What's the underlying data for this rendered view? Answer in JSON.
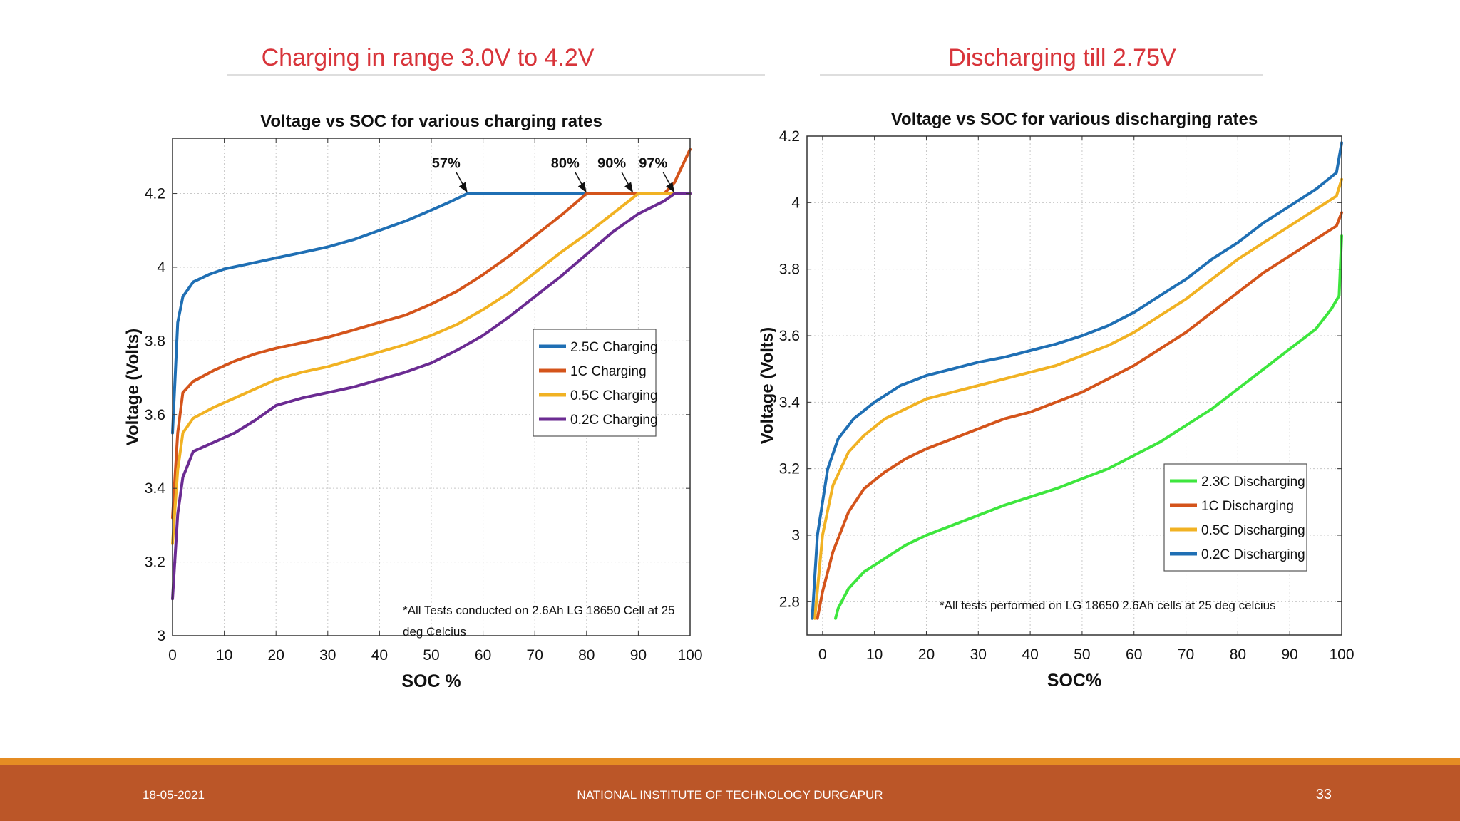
{
  "slide": {
    "left_heading": "Charging in range 3.0V to 4.2V",
    "right_heading": "Discharging till 2.75V",
    "footer_date": "18-05-2021",
    "footer_org": "NATIONAL INSTITUTE OF TECHNOLOGY DURGAPUR",
    "footer_page": "33"
  },
  "chart_data": [
    {
      "type": "line",
      "title": "Voltage vs SOC for various charging rates",
      "xlabel": "SOC %",
      "ylabel": "Voltage (Volts)",
      "xlim": [
        0,
        100
      ],
      "ylim": [
        3.0,
        4.35
      ],
      "xticks": [
        0,
        10,
        20,
        30,
        40,
        50,
        60,
        70,
        80,
        90,
        100
      ],
      "yticks": [
        3.0,
        3.2,
        3.4,
        3.6,
        3.8,
        4.0,
        4.2
      ],
      "ytick_labels": [
        "3",
        "3.2",
        "3.4",
        "3.6",
        "3.8",
        "4",
        "4.2"
      ],
      "grid": true,
      "legend_position": "center-right",
      "note_lines": [
        "*All Tests conducted on 2.6Ah LG 18650 Cell at 25",
        "deg Celcius"
      ],
      "series": [
        {
          "name": "2.5C Charging",
          "color": "#1f6fb4",
          "points": [
            [
              0,
              3.55
            ],
            [
              1,
              3.85
            ],
            [
              2,
              3.92
            ],
            [
              4,
              3.96
            ],
            [
              7,
              3.98
            ],
            [
              10,
              3.995
            ],
            [
              15,
              4.01
            ],
            [
              20,
              4.025
            ],
            [
              25,
              4.04
            ],
            [
              30,
              4.055
            ],
            [
              35,
              4.075
            ],
            [
              40,
              4.1
            ],
            [
              45,
              4.125
            ],
            [
              50,
              4.155
            ],
            [
              54,
              4.18
            ],
            [
              57,
              4.2
            ],
            [
              100,
              4.2
            ]
          ]
        },
        {
          "name": "1C Charging",
          "color": "#d4541b",
          "points": [
            [
              0,
              3.32
            ],
            [
              1,
              3.55
            ],
            [
              2,
              3.66
            ],
            [
              4,
              3.69
            ],
            [
              8,
              3.72
            ],
            [
              12,
              3.745
            ],
            [
              16,
              3.765
            ],
            [
              20,
              3.78
            ],
            [
              25,
              3.795
            ],
            [
              30,
              3.81
            ],
            [
              35,
              3.83
            ],
            [
              40,
              3.85
            ],
            [
              45,
              3.87
            ],
            [
              50,
              3.9
            ],
            [
              55,
              3.935
            ],
            [
              60,
              3.98
            ],
            [
              65,
              4.03
            ],
            [
              70,
              4.085
            ],
            [
              75,
              4.14
            ],
            [
              80,
              4.2
            ],
            [
              95,
              4.2
            ],
            [
              97,
              4.23
            ],
            [
              100,
              4.32
            ]
          ]
        },
        {
          "name": "0.5C Charging",
          "color": "#f1b223",
          "points": [
            [
              0,
              3.25
            ],
            [
              1,
              3.45
            ],
            [
              2,
              3.55
            ],
            [
              4,
              3.59
            ],
            [
              8,
              3.62
            ],
            [
              12,
              3.645
            ],
            [
              16,
              3.67
            ],
            [
              20,
              3.695
            ],
            [
              25,
              3.715
            ],
            [
              30,
              3.73
            ],
            [
              35,
              3.75
            ],
            [
              40,
              3.77
            ],
            [
              45,
              3.79
            ],
            [
              50,
              3.815
            ],
            [
              55,
              3.845
            ],
            [
              60,
              3.885
            ],
            [
              65,
              3.93
            ],
            [
              70,
              3.985
            ],
            [
              75,
              4.04
            ],
            [
              80,
              4.09
            ],
            [
              85,
              4.145
            ],
            [
              90,
              4.2
            ],
            [
              100,
              4.2
            ]
          ]
        },
        {
          "name": "0.2C Charging",
          "color": "#6b2b92",
          "points": [
            [
              0,
              3.1
            ],
            [
              1,
              3.33
            ],
            [
              2,
              3.43
            ],
            [
              4,
              3.5
            ],
            [
              8,
              3.525
            ],
            [
              12,
              3.55
            ],
            [
              16,
              3.585
            ],
            [
              20,
              3.625
            ],
            [
              25,
              3.645
            ],
            [
              30,
              3.66
            ],
            [
              35,
              3.675
            ],
            [
              40,
              3.695
            ],
            [
              45,
              3.715
            ],
            [
              50,
              3.74
            ],
            [
              55,
              3.775
            ],
            [
              60,
              3.815
            ],
            [
              65,
              3.865
            ],
            [
              70,
              3.92
            ],
            [
              75,
              3.975
            ],
            [
              80,
              4.035
            ],
            [
              85,
              4.095
            ],
            [
              90,
              4.145
            ],
            [
              95,
              4.18
            ],
            [
              97,
              4.2
            ],
            [
              100,
              4.2
            ]
          ]
        }
      ],
      "annotations": [
        {
          "text": "57%",
          "x": 57,
          "y": 4.2
        },
        {
          "text": "80%",
          "x": 80,
          "y": 4.2
        },
        {
          "text": "90%",
          "x": 89,
          "y": 4.2
        },
        {
          "text": "97%",
          "x": 97,
          "y": 4.2
        }
      ]
    },
    {
      "type": "line",
      "title": "Voltage vs SOC for various discharging rates",
      "xlabel": "SOC%",
      "ylabel": "Voltage (Volts)",
      "xlim": [
        -3,
        100
      ],
      "ylim": [
        2.7,
        4.2
      ],
      "xticks": [
        0,
        10,
        20,
        30,
        40,
        50,
        60,
        70,
        80,
        90,
        100
      ],
      "yticks": [
        2.8,
        3.0,
        3.2,
        3.4,
        3.6,
        3.8,
        4.0,
        4.2
      ],
      "ytick_labels": [
        "2.8",
        "3",
        "3.2",
        "3.4",
        "3.6",
        "3.8",
        "4",
        "4.2"
      ],
      "grid": true,
      "legend_position": "lower-right",
      "note_lines": [
        "*All tests performed on LG 18650 2.6Ah cells at 25 deg celcius"
      ],
      "series": [
        {
          "name": "2.3C Discharging",
          "color": "#3ee63e",
          "points": [
            [
              2.5,
              2.75
            ],
            [
              3,
              2.78
            ],
            [
              5,
              2.84
            ],
            [
              8,
              2.89
            ],
            [
              12,
              2.93
            ],
            [
              16,
              2.97
            ],
            [
              20,
              3.0
            ],
            [
              25,
              3.03
            ],
            [
              30,
              3.06
            ],
            [
              35,
              3.09
            ],
            [
              40,
              3.115
            ],
            [
              45,
              3.14
            ],
            [
              50,
              3.17
            ],
            [
              55,
              3.2
            ],
            [
              60,
              3.24
            ],
            [
              65,
              3.28
            ],
            [
              70,
              3.33
            ],
            [
              75,
              3.38
            ],
            [
              80,
              3.44
            ],
            [
              85,
              3.5
            ],
            [
              90,
              3.56
            ],
            [
              95,
              3.62
            ],
            [
              98,
              3.68
            ],
            [
              99.5,
              3.72
            ],
            [
              100,
              3.9
            ]
          ]
        },
        {
          "name": "1C Discharging",
          "color": "#d4541b",
          "points": [
            [
              -1,
              2.75
            ],
            [
              0,
              2.83
            ],
            [
              2,
              2.95
            ],
            [
              5,
              3.07
            ],
            [
              8,
              3.14
            ],
            [
              12,
              3.19
            ],
            [
              16,
              3.23
            ],
            [
              20,
              3.26
            ],
            [
              25,
              3.29
            ],
            [
              30,
              3.32
            ],
            [
              35,
              3.35
            ],
            [
              40,
              3.37
            ],
            [
              45,
              3.4
            ],
            [
              50,
              3.43
            ],
            [
              55,
              3.47
            ],
            [
              60,
              3.51
            ],
            [
              65,
              3.56
            ],
            [
              70,
              3.61
            ],
            [
              75,
              3.67
            ],
            [
              80,
              3.73
            ],
            [
              85,
              3.79
            ],
            [
              90,
              3.84
            ],
            [
              95,
              3.89
            ],
            [
              99,
              3.93
            ],
            [
              100,
              3.97
            ]
          ]
        },
        {
          "name": "0.5C Discharging",
          "color": "#f1b223",
          "points": [
            [
              -1.5,
              2.75
            ],
            [
              0,
              3.0
            ],
            [
              2,
              3.15
            ],
            [
              5,
              3.25
            ],
            [
              8,
              3.3
            ],
            [
              12,
              3.35
            ],
            [
              16,
              3.38
            ],
            [
              20,
              3.41
            ],
            [
              25,
              3.43
            ],
            [
              30,
              3.45
            ],
            [
              35,
              3.47
            ],
            [
              40,
              3.49
            ],
            [
              45,
              3.51
            ],
            [
              50,
              3.54
            ],
            [
              55,
              3.57
            ],
            [
              60,
              3.61
            ],
            [
              65,
              3.66
            ],
            [
              70,
              3.71
            ],
            [
              75,
              3.77
            ],
            [
              80,
              3.83
            ],
            [
              85,
              3.88
            ],
            [
              90,
              3.93
            ],
            [
              95,
              3.98
            ],
            [
              99,
              4.02
            ],
            [
              100,
              4.07
            ]
          ]
        },
        {
          "name": "0.2C Discharging",
          "color": "#1f6fb4",
          "points": [
            [
              -2,
              2.75
            ],
            [
              -1,
              3.0
            ],
            [
              1,
              3.2
            ],
            [
              3,
              3.29
            ],
            [
              6,
              3.35
            ],
            [
              10,
              3.4
            ],
            [
              15,
              3.45
            ],
            [
              20,
              3.48
            ],
            [
              25,
              3.5
            ],
            [
              30,
              3.52
            ],
            [
              35,
              3.535
            ],
            [
              40,
              3.555
            ],
            [
              45,
              3.575
            ],
            [
              50,
              3.6
            ],
            [
              55,
              3.63
            ],
            [
              60,
              3.67
            ],
            [
              65,
              3.72
            ],
            [
              70,
              3.77
            ],
            [
              75,
              3.83
            ],
            [
              80,
              3.88
            ],
            [
              85,
              3.94
            ],
            [
              90,
              3.99
            ],
            [
              95,
              4.04
            ],
            [
              99,
              4.09
            ],
            [
              100,
              4.18
            ]
          ]
        }
      ]
    }
  ]
}
